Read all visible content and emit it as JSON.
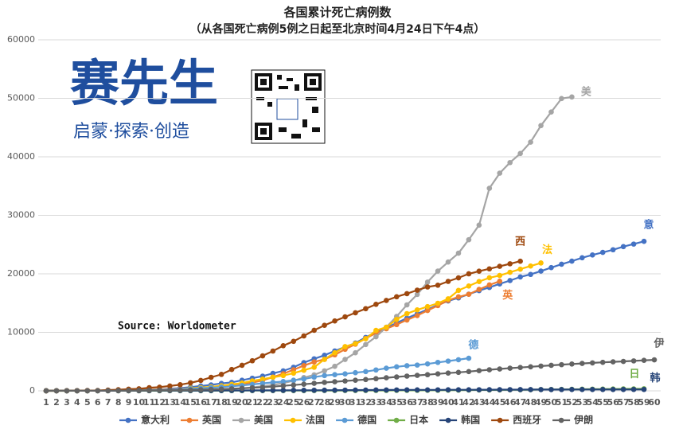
{
  "chart_data": {
    "type": "line",
    "title": "各国累计死亡病例数",
    "subtitle": "（从各国死亡病例5例之日起至北京时间4月24日下午4点）",
    "source": "Source: Worldometer",
    "logo": {
      "name": "赛先生",
      "slogan": "启蒙·探索·创造"
    },
    "categories": [
      1,
      2,
      3,
      4,
      5,
      6,
      7,
      8,
      9,
      10,
      11,
      12,
      13,
      14,
      15,
      16,
      17,
      18,
      19,
      20,
      21,
      22,
      23,
      24,
      25,
      26,
      27,
      28,
      29,
      30,
      31,
      32,
      33,
      34,
      35,
      36,
      37,
      38,
      39,
      40,
      41,
      42,
      43,
      44,
      45,
      46,
      47,
      48,
      49,
      50,
      51,
      52,
      53,
      54,
      55,
      56,
      57,
      58,
      59,
      60
    ],
    "ylim": [
      0,
      60000
    ],
    "yticks": [
      0,
      10000,
      20000,
      30000,
      40000,
      50000,
      60000
    ],
    "grid": true,
    "series": [
      {
        "name": "意大利",
        "label": "意",
        "color": "#4472c4",
        "values": [
          10,
          12,
          17,
          21,
          29,
          34,
          52,
          79,
          107,
          148,
          197,
          233,
          366,
          463,
          631,
          827,
          1016,
          1266,
          1441,
          1809,
          2158,
          2503,
          2978,
          3405,
          4032,
          4825,
          5476,
          6077,
          6820,
          7503,
          8165,
          9134,
          10023,
          10779,
          11591,
          12428,
          13155,
          13915,
          14681,
          15362,
          15887,
          16523,
          17127,
          17669,
          18279,
          18849,
          19468,
          19899,
          20465,
          21067,
          21645,
          22170,
          22745,
          23227,
          23660,
          24114,
          24648,
          25085,
          25549,
          null
        ]
      },
      {
        "name": "英国",
        "label": "英",
        "color": "#ed7d31",
        "values": [
          5,
          6,
          7,
          8,
          10,
          21,
          56,
          56,
          72,
          138,
          178,
          233,
          281,
          335,
          422,
          465,
          578,
          759,
          1019,
          1228,
          1408,
          1789,
          2352,
          2921,
          3605,
          4313,
          4934,
          5373,
          6159,
          7097,
          7978,
          8958,
          9875,
          10612,
          11329,
          12107,
          12868,
          13729,
          14576,
          15464,
          16060,
          16509,
          17337,
          18100,
          18738,
          null,
          null,
          null,
          null,
          null,
          null,
          null,
          null,
          null,
          null,
          null,
          null,
          null,
          null,
          null
        ]
      },
      {
        "name": "美国",
        "label": "美",
        "color": "#a5a5a5",
        "values": [
          6,
          9,
          11,
          12,
          15,
          19,
          22,
          26,
          30,
          38,
          41,
          48,
          58,
          73,
          99,
          133,
          164,
          258,
          349,
          442,
          586,
          786,
          1008,
          1316,
          1726,
          2265,
          2731,
          3420,
          4192,
          5367,
          6501,
          7921,
          9246,
          10876,
          12722,
          14695,
          16478,
          18586,
          20463,
          22020,
          23529,
          25831,
          28325,
          34617,
          37202,
          39015,
          40575,
          42514,
          45340,
          47659,
          49954,
          50234,
          null,
          null,
          null,
          null,
          null,
          null,
          null,
          null
        ]
      },
      {
        "name": "法国",
        "label": "法",
        "color": "#ffc000",
        "values": [
          7,
          9,
          11,
          19,
          19,
          33,
          48,
          48,
          79,
          91,
          127,
          148,
          148,
          243,
          450,
          562,
          674,
          860,
          1100,
          1331,
          1696,
          1995,
          2314,
          2606,
          3024,
          3523,
          4032,
          5387,
          6507,
          7560,
          8078,
          8911,
          10328,
          10869,
          12210,
          13197,
          13832,
          14393,
          14967,
          15729,
          17167,
          17920,
          18681,
          19323,
          19718,
          20265,
          20796,
          21340,
          21856,
          null,
          null,
          null,
          null,
          null,
          null,
          null,
          null,
          null,
          null,
          null
        ]
      },
      {
        "name": "德国",
        "label": "德",
        "color": "#5b9bd5",
        "values": [
          9,
          11,
          13,
          17,
          24,
          28,
          44,
          67,
          84,
          94,
          123,
          157,
          206,
          267,
          342,
          433,
          533,
          645,
          775,
          920,
          1107,
          1275,
          1444,
          1584,
          1810,
          2016,
          2349,
          2607,
          2767,
          2905,
          3099,
          3294,
          3569,
          3868,
          4110,
          4294,
          4404,
          4598,
          4862,
          5086,
          5315,
          5575,
          null,
          null,
          null,
          null,
          null,
          null,
          null,
          null,
          null,
          null,
          null,
          null,
          null,
          null,
          null,
          null,
          null,
          null
        ]
      },
      {
        "name": "日本",
        "label": "日",
        "color": "#70ad47",
        "values": [
          6,
          6,
          6,
          7,
          9,
          11,
          12,
          12,
          12,
          15,
          16,
          19,
          21,
          22,
          24,
          28,
          29,
          33,
          35,
          36,
          41,
          42,
          43,
          45,
          46,
          49,
          52,
          54,
          56,
          57,
          63,
          66,
          69,
          70,
          77,
          81,
          85,
          94,
          99,
          108,
          118,
          136,
          146,
          154,
          163,
          178,
          186,
          190,
          222,
          236,
          246,
          263,
          277,
          287,
          299,
          317,
          328,
          334,
          345,
          null
        ]
      },
      {
        "name": "韩国",
        "label": "韩",
        "color": "#264478",
        "values": [
          7,
          8,
          11,
          12,
          13,
          16,
          17,
          22,
          28,
          32,
          35,
          42,
          44,
          50,
          51,
          54,
          60,
          66,
          67,
          72,
          75,
          75,
          81,
          84,
          91,
          94,
          102,
          104,
          111,
          120,
          126,
          131,
          139,
          144,
          152,
          158,
          162,
          165,
          169,
          174,
          177,
          183,
          186,
          192,
          200,
          204,
          208,
          211,
          214,
          217,
          222,
          225,
          229,
          230,
          232,
          234,
          236,
          237,
          238,
          null
        ]
      },
      {
        "name": "西班牙",
        "label": "西",
        "color": "#9e480e",
        "values": [
          10,
          17,
          28,
          35,
          54,
          55,
          133,
          195,
          289,
          342,
          533,
          623,
          830,
          1043,
          1375,
          1772,
          2311,
          2808,
          3647,
          4365,
          5138,
          5982,
          6803,
          7716,
          8464,
          9387,
          10348,
          11198,
          11947,
          12641,
          13341,
          14045,
          14792,
          15447,
          16081,
          16606,
          17209,
          17756,
          18056,
          18708,
          19315,
          20002,
          20453,
          20852,
          21282,
          21717,
          22157,
          null,
          null,
          null,
          null,
          null,
          null,
          null,
          null,
          null,
          null,
          null,
          null,
          null
        ]
      },
      {
        "name": "伊朗",
        "label": "伊",
        "color": "#636363",
        "values": [
          5,
          8,
          12,
          16,
          19,
          26,
          34,
          43,
          54,
          66,
          77,
          92,
          107,
          124,
          145,
          194,
          237,
          291,
          354,
          429,
          514,
          611,
          724,
          853,
          988,
          1135,
          1284,
          1433,
          1556,
          1685,
          1812,
          1934,
          2077,
          2234,
          2378,
          2517,
          2640,
          2757,
          2898,
          3036,
          3160,
          3294,
          3452,
          3603,
          3739,
          3872,
          3993,
          4110,
          4232,
          4357,
          4474,
          4585,
          4683,
          4777,
          4869,
          4958,
          5031,
          5118,
          5209,
          5297
        ]
      }
    ]
  }
}
